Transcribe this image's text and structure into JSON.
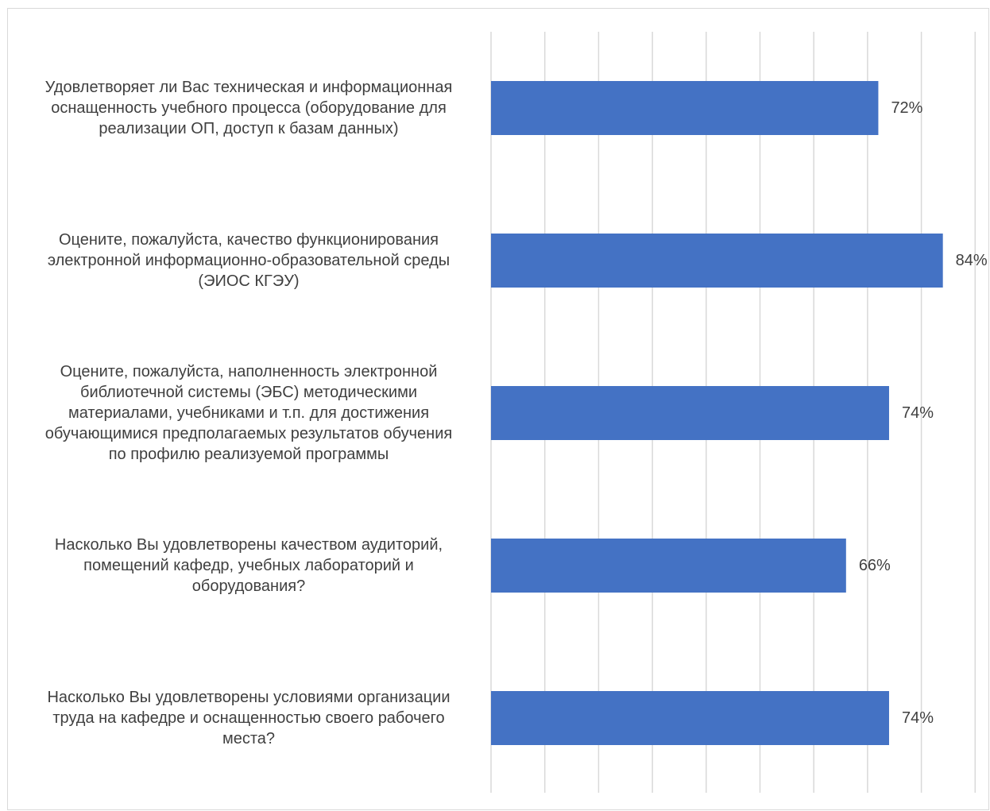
{
  "chart_data": {
    "type": "bar",
    "orientation": "horizontal",
    "categories": [
      "Удовлетворяет ли Вас техническая и информационная оснащенность учебного процесса (оборудование для реализации ОП, доступ к базам данных)",
      "Оцените, пожалуйста, качество функционирования электронной информационно-образовательной среды (ЭИОС КГЭУ)",
      "Оцените, пожалуйста, наполненность электронной библиотечной системы (ЭБС) методическими материалами, учебниками и т.п. для достижения обучающимися предполагаемых результатов обучения по профилю реализуемой программы",
      "Насколько Вы удовлетворены качеством аудиторий, помещений кафедр, учебных лабораторий и оборудования?",
      "Насколько Вы удовлетворены условиями организации труда на кафедре и оснащенностью своего рабочего места?"
    ],
    "category_lines": [
      [
        "Удовлетворяет ли Вас техническая и информационная",
        "оснащенность учебного процесса (оборудование для",
        "реализации ОП, доступ к базам данных)"
      ],
      [
        "Оцените, пожалуйста, качество функционирования",
        "электронной информационно-образовательной среды",
        "(ЭИОС КГЭУ)"
      ],
      [
        "Оцените, пожалуйста, наполненность электронной",
        "библиотечной системы (ЭБС) методическими",
        "материалами, учебниками и т.п. для достижения",
        "обучающимися предполагаемых результатов обучения",
        "по профилю реализуемой программы"
      ],
      [
        "Насколько Вы удовлетворены качеством аудиторий,",
        "помещений кафедр, учебных лабораторий и",
        "оборудования?"
      ],
      [
        "Насколько Вы удовлетворены условиями организации",
        "труда на кафедре и оснащенностью своего рабочего",
        "места?"
      ]
    ],
    "values": [
      72,
      84,
      74,
      66,
      74
    ],
    "value_labels": [
      "72%",
      "84%",
      "74%",
      "66%",
      "74%"
    ],
    "xlim": [
      0,
      90
    ],
    "gridline_step": 10,
    "grid": true,
    "title": "",
    "xlabel": "",
    "ylabel": "",
    "bar_color": "#4472c4",
    "grid_color": "#d9d9d9",
    "text_color": "#3f3f3f"
  }
}
